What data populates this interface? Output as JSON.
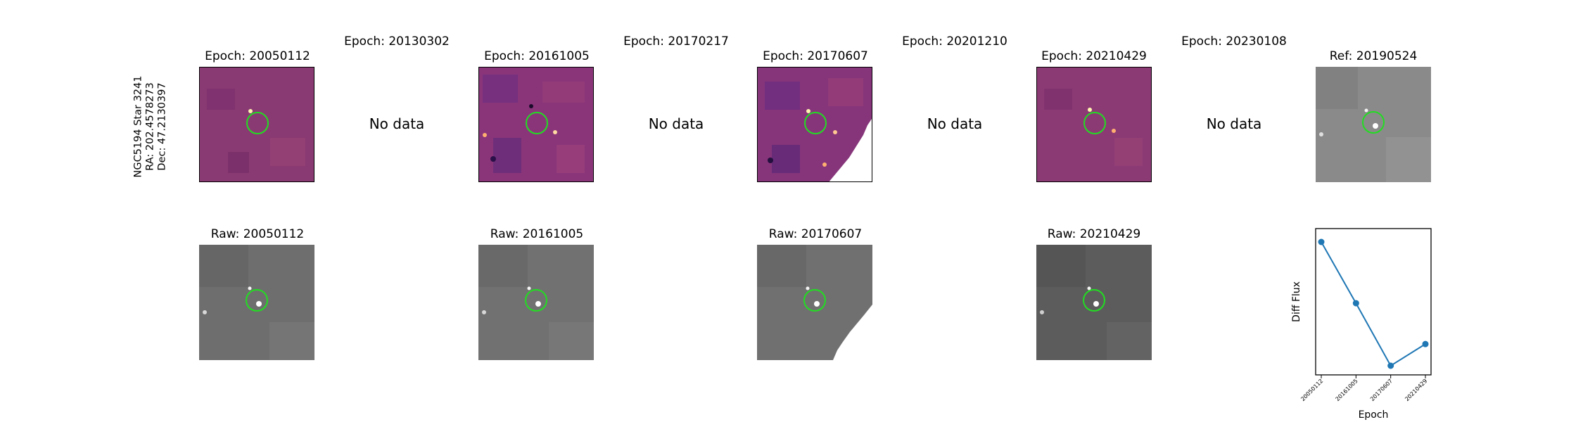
{
  "star_label": {
    "name": "NGC5194 Star 3241",
    "ra": "RA: 202.4578273",
    "dec": "Dec: 47.2130397"
  },
  "diff_row": [
    {
      "title": "Epoch: 20050112",
      "has_data": true,
      "cmap": "magma"
    },
    {
      "title": "Epoch: 20130302",
      "has_data": false,
      "nodata_text": "No data"
    },
    {
      "title": "Epoch: 20161005",
      "has_data": true,
      "cmap": "magma"
    },
    {
      "title": "Epoch: 20170217",
      "has_data": false,
      "nodata_text": "No data"
    },
    {
      "title": "Epoch: 20170607",
      "has_data": true,
      "cmap": "magma"
    },
    {
      "title": "Epoch: 20201210",
      "has_data": false,
      "nodata_text": "No data"
    },
    {
      "title": "Epoch: 20210429",
      "has_data": true,
      "cmap": "magma"
    },
    {
      "title": "Epoch: 20230108",
      "has_data": false,
      "nodata_text": "No data"
    },
    {
      "title": "Ref: 20190524",
      "has_data": true,
      "cmap": "gray"
    }
  ],
  "raw_row": [
    {
      "title": "Raw: 20050112"
    },
    {
      "title": "Raw: 20161005"
    },
    {
      "title": "Raw: 20170607"
    },
    {
      "title": "Raw: 20210429"
    }
  ],
  "colors": {
    "aperture": "#22dd22",
    "series": "#1f77b4"
  },
  "chart_data": {
    "type": "line",
    "x": [
      "20050112",
      "20161005",
      "20170607",
      "20210429"
    ],
    "series": [
      {
        "values": [
          1.0,
          0.52,
          0.03,
          0.2
        ]
      }
    ],
    "xlabel": "Epoch",
    "ylabel": "Diff Flux",
    "title": ""
  }
}
